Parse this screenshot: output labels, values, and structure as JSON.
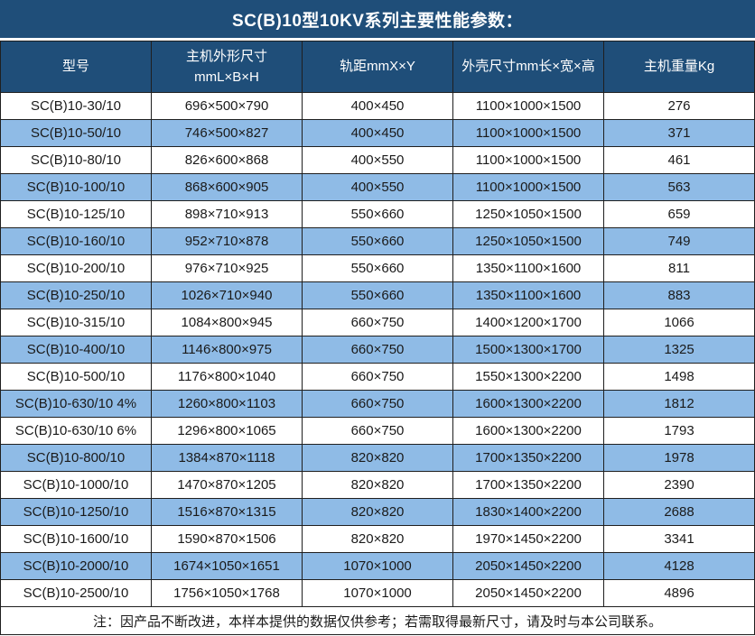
{
  "title": "SC(B)10型10KV系列主要性能参数：",
  "colors": {
    "header_bg": "#1F4E79",
    "row_alt_bg": "#8FBBE6",
    "row_bg": "#ffffff",
    "border": "#1f1f1f",
    "header_text": "#ffffff",
    "body_text": "#1a1a1a"
  },
  "table": {
    "columns": [
      "型号",
      "主机外形尺寸\nmmL×B×H",
      "轨距mmX×Y",
      "外壳尺寸mm长×宽×高",
      "主机重量Kg"
    ],
    "rows": [
      [
        "SC(B)10-30/10",
        "696×500×790",
        "400×450",
        "1100×1000×1500",
        "276"
      ],
      [
        "SC(B)10-50/10",
        "746×500×827",
        "400×450",
        "1100×1000×1500",
        "371"
      ],
      [
        "SC(B)10-80/10",
        "826×600×868",
        "400×550",
        "1100×1000×1500",
        "461"
      ],
      [
        "SC(B)10-100/10",
        "868×600×905",
        "400×550",
        "1100×1000×1500",
        "563"
      ],
      [
        "SC(B)10-125/10",
        "898×710×913",
        "550×660",
        "1250×1050×1500",
        "659"
      ],
      [
        "SC(B)10-160/10",
        "952×710×878",
        "550×660",
        "1250×1050×1500",
        "749"
      ],
      [
        "SC(B)10-200/10",
        "976×710×925",
        "550×660",
        "1350×1100×1600",
        "811"
      ],
      [
        "SC(B)10-250/10",
        "1026×710×940",
        "550×660",
        "1350×1100×1600",
        "883"
      ],
      [
        "SC(B)10-315/10",
        "1084×800×945",
        "660×750",
        "1400×1200×1700",
        "1066"
      ],
      [
        "SC(B)10-400/10",
        "1146×800×975",
        "660×750",
        "1500×1300×1700",
        "1325"
      ],
      [
        "SC(B)10-500/10",
        "1176×800×1040",
        "660×750",
        "1550×1300×2200",
        "1498"
      ],
      [
        "SC(B)10-630/10 4%",
        "1260×800×1103",
        "660×750",
        "1600×1300×2200",
        "1812"
      ],
      [
        "SC(B)10-630/10 6%",
        "1296×800×1065",
        "660×750",
        "1600×1300×2200",
        "1793"
      ],
      [
        "SC(B)10-800/10",
        "1384×870×1118",
        "820×820",
        "1700×1350×2200",
        "1978"
      ],
      [
        "SC(B)10-1000/10",
        "1470×870×1205",
        "820×820",
        "1700×1350×2200",
        "2390"
      ],
      [
        "SC(B)10-1250/10",
        "1516×870×1315",
        "820×820",
        "1830×1400×2200",
        "2688"
      ],
      [
        "SC(B)10-1600/10",
        "1590×870×1506",
        "820×820",
        "1970×1450×2200",
        "3341"
      ],
      [
        "SC(B)10-2000/10",
        "1674×1050×1651",
        "1070×1000",
        "2050×1450×2200",
        "4128"
      ],
      [
        "SC(B)10-2500/10",
        "1756×1050×1768",
        "1070×1000",
        "2050×1450×2200",
        "4896"
      ]
    ],
    "note": "注：因产品不断改进，本样本提供的数据仅供参考；若需取得最新尺寸，请及时与本公司联系。"
  }
}
